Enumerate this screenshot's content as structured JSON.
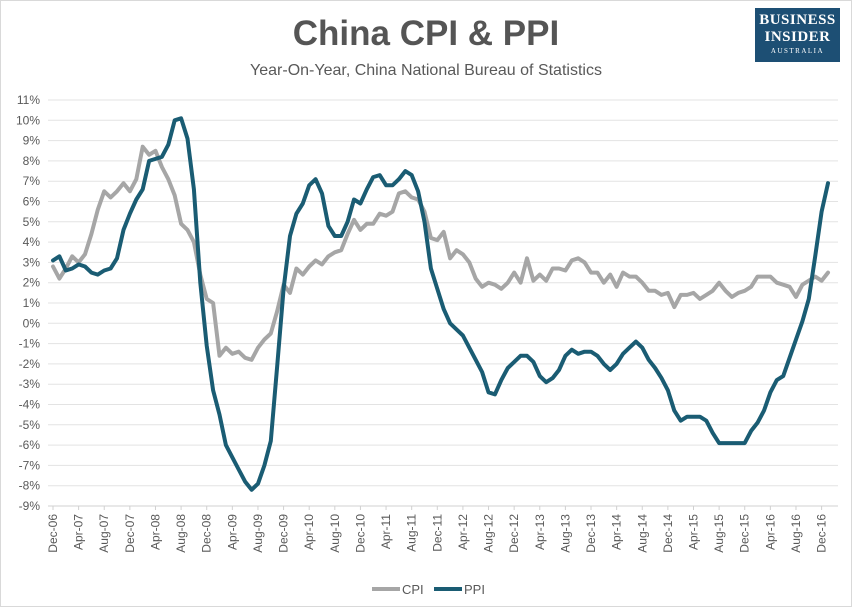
{
  "header": {
    "title": "China CPI & PPI",
    "subtitle": "Year-On-Year, China National Bureau of Statistics"
  },
  "logo": {
    "line1": "BUSINESS",
    "line2": "INSIDER",
    "line3": "AUSTRALIA"
  },
  "chart_data": {
    "type": "line",
    "title": "China CPI & PPI",
    "subtitle": "Year-On-Year, China National Bureau of Statistics",
    "xlabel": "",
    "ylabel": "",
    "x_start": "Dec-06",
    "x_ticks": [
      "Dec-06",
      "Apr-07",
      "Aug-07",
      "Dec-07",
      "Apr-08",
      "Aug-08",
      "Dec-08",
      "Apr-09",
      "Aug-09",
      "Dec-09",
      "Apr-10",
      "Aug-10",
      "Dec-10",
      "Apr-11",
      "Aug-11",
      "Dec-11",
      "Apr-12",
      "Aug-12",
      "Dec-12",
      "Apr-13",
      "Aug-13",
      "Dec-13",
      "Apr-14",
      "Aug-14",
      "Dec-14",
      "Apr-15",
      "Aug-15",
      "Dec-15",
      "Apr-16",
      "Aug-16",
      "Dec-16"
    ],
    "y_ticks": [
      "11%",
      "10%",
      "9%",
      "8%",
      "7%",
      "6%",
      "5%",
      "4%",
      "3%",
      "2%",
      "1%",
      "0%",
      "-1%",
      "-2%",
      "-3%",
      "-4%",
      "-5%",
      "-6%",
      "-7%",
      "-8%",
      "-9%"
    ],
    "ylim": [
      -9,
      11
    ],
    "grid": true,
    "legend": "bottom",
    "series": [
      {
        "name": "CPI",
        "color": "#a6a6a6",
        "values": [
          2.8,
          2.2,
          2.7,
          3.3,
          3.0,
          3.4,
          4.4,
          5.6,
          6.5,
          6.2,
          6.5,
          6.9,
          6.5,
          7.1,
          8.7,
          8.3,
          8.5,
          7.7,
          7.1,
          6.3,
          4.9,
          4.6,
          4.0,
          2.4,
          1.2,
          1.0,
          -1.6,
          -1.2,
          -1.5,
          -1.4,
          -1.7,
          -1.8,
          -1.2,
          -0.8,
          -0.5,
          0.6,
          1.9,
          1.5,
          2.7,
          2.4,
          2.8,
          3.1,
          2.9,
          3.3,
          3.5,
          3.6,
          4.4,
          5.1,
          4.6,
          4.9,
          4.9,
          5.4,
          5.3,
          5.5,
          6.4,
          6.5,
          6.2,
          6.1,
          5.5,
          4.2,
          4.1,
          4.5,
          3.2,
          3.6,
          3.4,
          3.0,
          2.2,
          1.8,
          2.0,
          1.9,
          1.7,
          2.0,
          2.5,
          2.0,
          3.2,
          2.1,
          2.4,
          2.1,
          2.7,
          2.7,
          2.6,
          3.1,
          3.2,
          3.0,
          2.5,
          2.5,
          2.0,
          2.4,
          1.8,
          2.5,
          2.3,
          2.3,
          2.0,
          1.6,
          1.6,
          1.4,
          1.5,
          0.8,
          1.4,
          1.4,
          1.5,
          1.2,
          1.4,
          1.6,
          2.0,
          1.6,
          1.3,
          1.5,
          1.6,
          1.8,
          2.3,
          2.3,
          2.3,
          2.0,
          1.9,
          1.8,
          1.3,
          1.9,
          2.1,
          2.3,
          2.1,
          2.5
        ]
      },
      {
        "name": "PPI",
        "color": "#1a5c73",
        "values": [
          3.1,
          3.3,
          2.6,
          2.7,
          2.9,
          2.8,
          2.5,
          2.4,
          2.6,
          2.7,
          3.2,
          4.6,
          5.4,
          6.1,
          6.6,
          8.0,
          8.1,
          8.2,
          8.8,
          10.0,
          10.1,
          9.1,
          6.6,
          2.0,
          -1.1,
          -3.3,
          -4.5,
          -6.0,
          -6.6,
          -7.2,
          -7.8,
          -8.2,
          -7.9,
          -7.0,
          -5.8,
          -2.1,
          1.7,
          4.3,
          5.4,
          5.9,
          6.8,
          7.1,
          6.4,
          4.8,
          4.3,
          4.3,
          5.0,
          6.1,
          5.9,
          6.6,
          7.2,
          7.3,
          6.8,
          6.8,
          7.1,
          7.5,
          7.3,
          6.5,
          5.0,
          2.7,
          1.7,
          0.7,
          0.0,
          -0.3,
          -0.6,
          -1.2,
          -1.8,
          -2.4,
          -3.4,
          -3.5,
          -2.8,
          -2.2,
          -1.9,
          -1.6,
          -1.6,
          -1.9,
          -2.6,
          -2.9,
          -2.7,
          -2.3,
          -1.6,
          -1.3,
          -1.5,
          -1.4,
          -1.4,
          -1.6,
          -2.0,
          -2.3,
          -2.0,
          -1.5,
          -1.2,
          -0.9,
          -1.2,
          -1.8,
          -2.2,
          -2.7,
          -3.3,
          -4.3,
          -4.8,
          -4.6,
          -4.6,
          -4.6,
          -4.8,
          -5.4,
          -5.9,
          -5.9,
          -5.9,
          -5.9,
          -5.9,
          -5.3,
          -4.9,
          -4.3,
          -3.4,
          -2.8,
          -2.6,
          -1.7,
          -0.8,
          0.1,
          1.2,
          3.3,
          5.5,
          6.9
        ]
      }
    ]
  }
}
